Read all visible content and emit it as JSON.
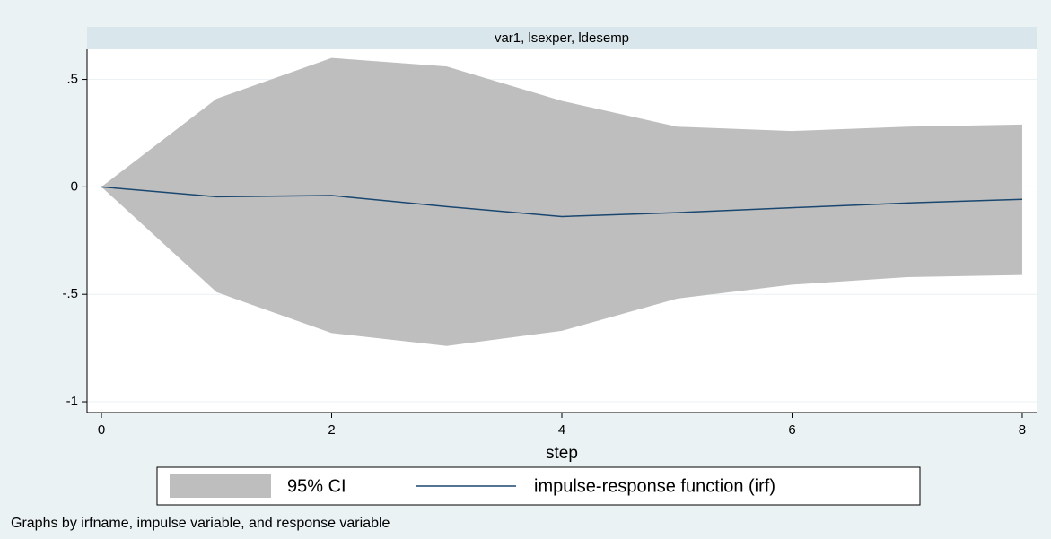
{
  "chart_data": {
    "type": "line",
    "panel_title": "var1, lsexper, ldesemp",
    "x_label": "step",
    "note": "Graphs by irfname, impulse variable, and response variable",
    "x": [
      0,
      1,
      2,
      3,
      4,
      5,
      6,
      7,
      8
    ],
    "series": [
      {
        "name": "95% CI",
        "type": "band",
        "color": "#bebebe",
        "upper": [
          0,
          0.41,
          0.6,
          0.56,
          0.4,
          0.28,
          0.26,
          0.28,
          0.29
        ],
        "lower": [
          0,
          -0.49,
          -0.68,
          -0.74,
          -0.67,
          -0.52,
          -0.455,
          -0.42,
          -0.41
        ]
      },
      {
        "name": "impulse-response function (irf)",
        "type": "line",
        "color": "#1a476f",
        "values": [
          0,
          -0.046,
          -0.04,
          -0.092,
          -0.138,
          -0.12,
          -0.097,
          -0.075,
          -0.058
        ]
      }
    ],
    "xlim": [
      -0.125,
      8.125
    ],
    "xticks": [
      0,
      2,
      4,
      6,
      8
    ],
    "ylim": [
      -1.05,
      0.64
    ],
    "yticks": [
      {
        "value": 0.5,
        "label": ".5"
      },
      0,
      {
        "value": -0.5,
        "label": "-.5"
      },
      -1
    ],
    "grid": true
  }
}
